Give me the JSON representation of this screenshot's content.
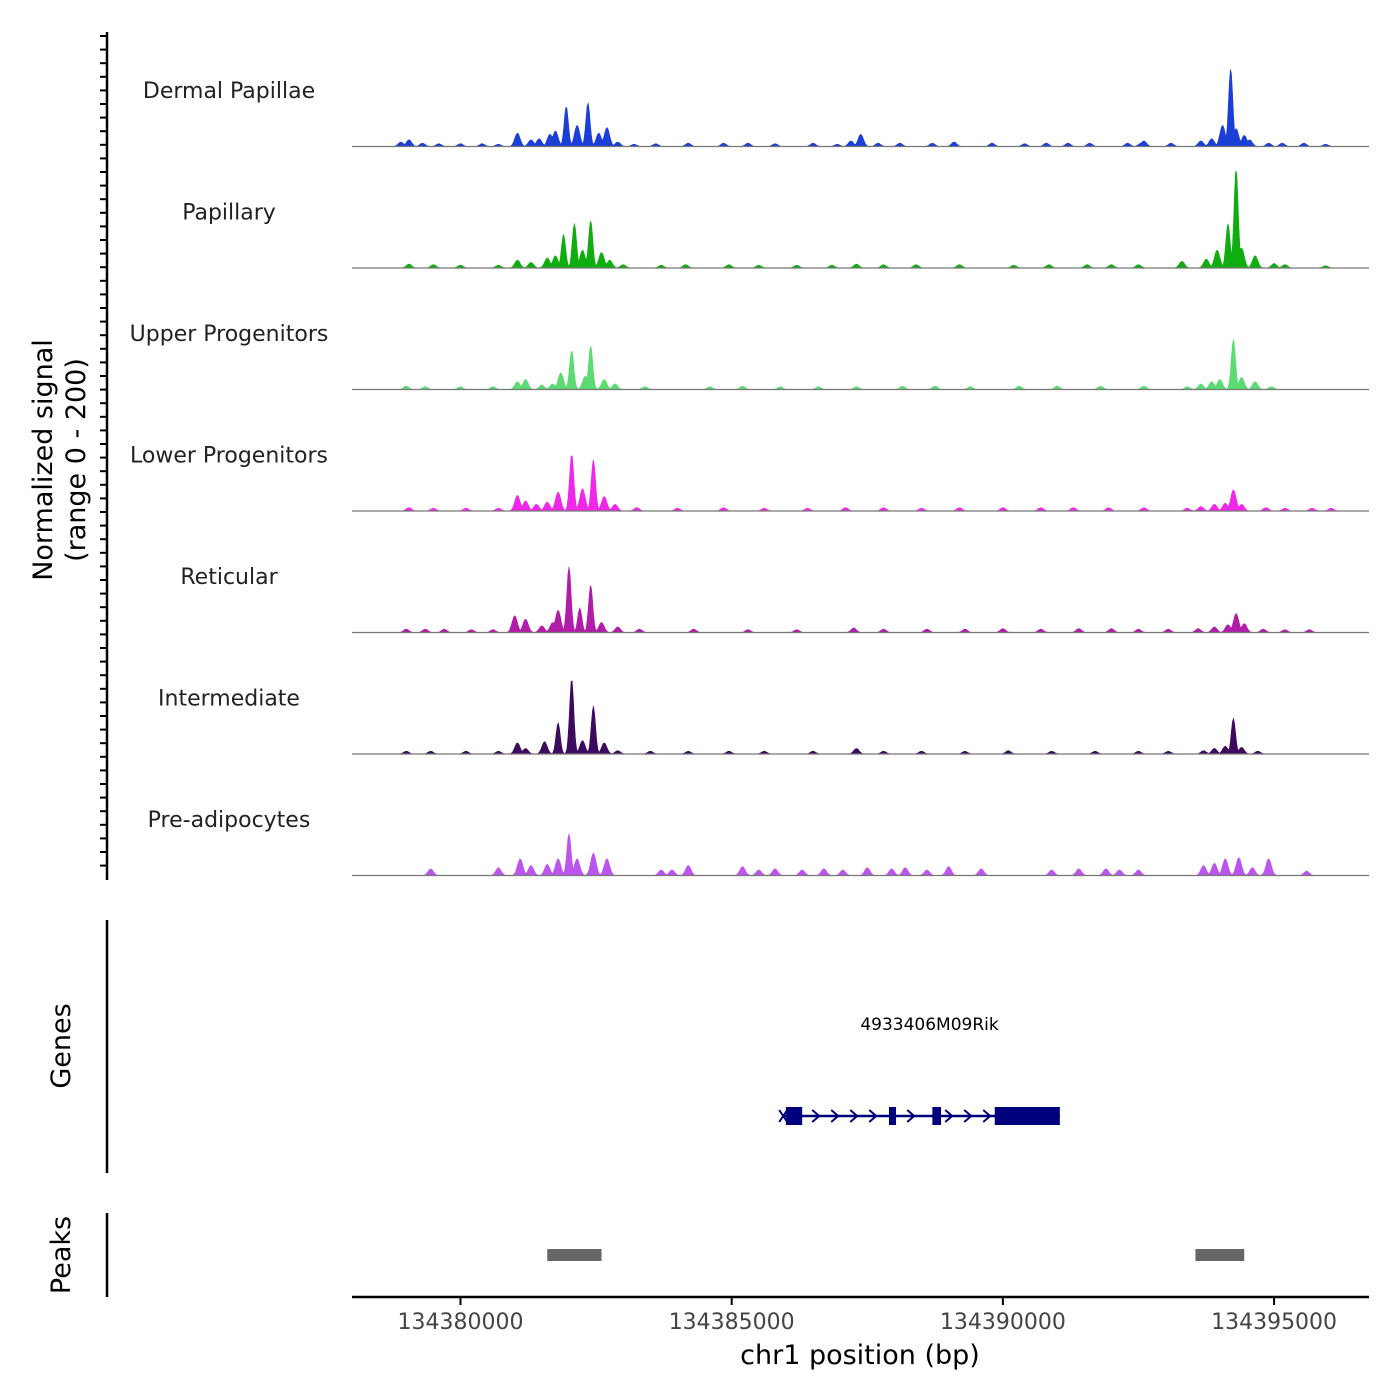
{
  "chart_data": {
    "type": "area",
    "title": "",
    "ylabel": "Normalized signal",
    "ylabel_range": "(range 0 - 200)",
    "ylim": [
      0,
      200
    ],
    "xlabel": "chr1 position (bp)",
    "xlim": [
      134378000,
      134396750
    ],
    "xticks": [
      134380000,
      134385000,
      134390000,
      134395000
    ],
    "xtick_labels": [
      "134380000",
      "134385000",
      "134390000",
      "134395000"
    ],
    "grid": false,
    "tracks": [
      {
        "name": "Dermal Papillae",
        "color": "#1a3fd6",
        "peaks": [
          [
            134378900,
            8
          ],
          [
            134379050,
            12
          ],
          [
            134379300,
            6
          ],
          [
            134379600,
            5
          ],
          [
            134380000,
            5
          ],
          [
            134380400,
            5
          ],
          [
            134380700,
            4
          ],
          [
            134381050,
            24
          ],
          [
            134381300,
            12
          ],
          [
            134381450,
            14
          ],
          [
            134381650,
            22
          ],
          [
            134381750,
            28
          ],
          [
            134381950,
            72
          ],
          [
            134382150,
            38
          ],
          [
            134382350,
            78
          ],
          [
            134382550,
            24
          ],
          [
            134382700,
            34
          ],
          [
            134382900,
            8
          ],
          [
            134383200,
            4
          ],
          [
            134383600,
            5
          ],
          [
            134384200,
            6
          ],
          [
            134384850,
            6
          ],
          [
            134385300,
            6
          ],
          [
            134385800,
            5
          ],
          [
            134386500,
            6
          ],
          [
            134386950,
            4
          ],
          [
            134387200,
            10
          ],
          [
            134387380,
            22
          ],
          [
            134387700,
            6
          ],
          [
            134388100,
            6
          ],
          [
            134388700,
            6
          ],
          [
            134389100,
            8
          ],
          [
            134389800,
            6
          ],
          [
            134390400,
            5
          ],
          [
            134390800,
            6
          ],
          [
            134391200,
            6
          ],
          [
            134391600,
            6
          ],
          [
            134392300,
            6
          ],
          [
            134392550,
            6
          ],
          [
            134392600,
            10
          ],
          [
            134393100,
            6
          ],
          [
            134393650,
            10
          ],
          [
            134393850,
            14
          ],
          [
            134394050,
            38
          ],
          [
            134394200,
            140
          ],
          [
            134394300,
            32
          ],
          [
            134394450,
            20
          ],
          [
            134394550,
            12
          ],
          [
            134394900,
            6
          ],
          [
            134395150,
            6
          ],
          [
            134395550,
            6
          ],
          [
            134395950,
            4
          ]
        ]
      },
      {
        "name": "Papillary",
        "color": "#10ad10",
        "peaks": [
          [
            134379050,
            7
          ],
          [
            134379500,
            6
          ],
          [
            134380000,
            5
          ],
          [
            134380700,
            5
          ],
          [
            134381050,
            14
          ],
          [
            134381300,
            10
          ],
          [
            134381600,
            18
          ],
          [
            134381750,
            22
          ],
          [
            134381900,
            60
          ],
          [
            134382100,
            80
          ],
          [
            134382250,
            32
          ],
          [
            134382400,
            85
          ],
          [
            134382600,
            28
          ],
          [
            134382750,
            14
          ],
          [
            134383000,
            6
          ],
          [
            134383700,
            5
          ],
          [
            134384150,
            6
          ],
          [
            134384950,
            6
          ],
          [
            134385500,
            5
          ],
          [
            134386200,
            5
          ],
          [
            134386850,
            5
          ],
          [
            134387300,
            7
          ],
          [
            134387800,
            6
          ],
          [
            134388400,
            6
          ],
          [
            134389200,
            6
          ],
          [
            134390200,
            5
          ],
          [
            134390850,
            6
          ],
          [
            134391550,
            6
          ],
          [
            134392000,
            6
          ],
          [
            134392500,
            6
          ],
          [
            134393300,
            12
          ],
          [
            134393750,
            16
          ],
          [
            134393950,
            32
          ],
          [
            134394150,
            80
          ],
          [
            134394300,
            178
          ],
          [
            134394400,
            36
          ],
          [
            134394650,
            22
          ],
          [
            134395000,
            8
          ],
          [
            134395200,
            6
          ],
          [
            134395950,
            4
          ]
        ]
      },
      {
        "name": "Upper Progenitors",
        "color": "#5bdb72",
        "peaks": [
          [
            134379000,
            6
          ],
          [
            134379350,
            5
          ],
          [
            134380000,
            5
          ],
          [
            134380600,
            5
          ],
          [
            134381050,
            14
          ],
          [
            134381200,
            18
          ],
          [
            134381500,
            8
          ],
          [
            134381700,
            10
          ],
          [
            134381850,
            30
          ],
          [
            134382050,
            70
          ],
          [
            134382300,
            24
          ],
          [
            134382400,
            78
          ],
          [
            134382650,
            18
          ],
          [
            134382850,
            10
          ],
          [
            134383400,
            5
          ],
          [
            134384600,
            5
          ],
          [
            134385200,
            6
          ],
          [
            134385900,
            5
          ],
          [
            134386600,
            5
          ],
          [
            134387300,
            5
          ],
          [
            134388150,
            6
          ],
          [
            134388750,
            6
          ],
          [
            134389400,
            5
          ],
          [
            134390300,
            6
          ],
          [
            134391000,
            6
          ],
          [
            134391800,
            6
          ],
          [
            134392600,
            6
          ],
          [
            134393400,
            5
          ],
          [
            134393650,
            10
          ],
          [
            134393850,
            14
          ],
          [
            134394000,
            18
          ],
          [
            134394250,
            90
          ],
          [
            134394400,
            22
          ],
          [
            134394650,
            14
          ],
          [
            134394950,
            5
          ]
        ]
      },
      {
        "name": "Lower Progenitors",
        "color": "#f026e8",
        "peaks": [
          [
            134379050,
            6
          ],
          [
            134379500,
            5
          ],
          [
            134380100,
            5
          ],
          [
            134380700,
            5
          ],
          [
            134381050,
            28
          ],
          [
            134381200,
            18
          ],
          [
            134381400,
            12
          ],
          [
            134381600,
            16
          ],
          [
            134381800,
            34
          ],
          [
            134382050,
            102
          ],
          [
            134382250,
            40
          ],
          [
            134382450,
            92
          ],
          [
            134382650,
            26
          ],
          [
            134382850,
            12
          ],
          [
            134383250,
            6
          ],
          [
            134384000,
            5
          ],
          [
            134384850,
            6
          ],
          [
            134385600,
            5
          ],
          [
            134386400,
            5
          ],
          [
            134387100,
            6
          ],
          [
            134387800,
            6
          ],
          [
            134388500,
            5
          ],
          [
            134389200,
            6
          ],
          [
            134390000,
            6
          ],
          [
            134390700,
            6
          ],
          [
            134391300,
            6
          ],
          [
            134391950,
            6
          ],
          [
            134392600,
            6
          ],
          [
            134393400,
            5
          ],
          [
            134393650,
            8
          ],
          [
            134393900,
            12
          ],
          [
            134394100,
            14
          ],
          [
            134394250,
            38
          ],
          [
            134394400,
            12
          ],
          [
            134394850,
            6
          ],
          [
            134395200,
            5
          ],
          [
            134395700,
            5
          ],
          [
            134396050,
            5
          ]
        ]
      },
      {
        "name": "Reticular",
        "color": "#b11ca8",
        "peaks": [
          [
            134379000,
            6
          ],
          [
            134379350,
            6
          ],
          [
            134379700,
            6
          ],
          [
            134380200,
            5
          ],
          [
            134380600,
            5
          ],
          [
            134381000,
            30
          ],
          [
            134381200,
            24
          ],
          [
            134381500,
            12
          ],
          [
            134381700,
            18
          ],
          [
            134381800,
            40
          ],
          [
            134382000,
            118
          ],
          [
            134382200,
            44
          ],
          [
            134382400,
            85
          ],
          [
            134382600,
            18
          ],
          [
            134382900,
            10
          ],
          [
            134383300,
            6
          ],
          [
            134384300,
            6
          ],
          [
            134385300,
            5
          ],
          [
            134386200,
            5
          ],
          [
            134387250,
            8
          ],
          [
            134387800,
            6
          ],
          [
            134388600,
            6
          ],
          [
            134389300,
            6
          ],
          [
            134390000,
            7
          ],
          [
            134390700,
            6
          ],
          [
            134391400,
            7
          ],
          [
            134392000,
            7
          ],
          [
            134392500,
            6
          ],
          [
            134393050,
            6
          ],
          [
            134393600,
            7
          ],
          [
            134393900,
            10
          ],
          [
            134394150,
            14
          ],
          [
            134394300,
            34
          ],
          [
            134394450,
            16
          ],
          [
            134394800,
            6
          ],
          [
            134395200,
            5
          ],
          [
            134395650,
            5
          ]
        ]
      },
      {
        "name": "Intermediate",
        "color": "#3c0a5e",
        "peaks": [
          [
            134379000,
            5
          ],
          [
            134379450,
            5
          ],
          [
            134380100,
            5
          ],
          [
            134380700,
            5
          ],
          [
            134381050,
            20
          ],
          [
            134381200,
            10
          ],
          [
            134381550,
            22
          ],
          [
            134381800,
            56
          ],
          [
            134382050,
            135
          ],
          [
            134382250,
            24
          ],
          [
            134382450,
            86
          ],
          [
            134382650,
            20
          ],
          [
            134382900,
            6
          ],
          [
            134383500,
            5
          ],
          [
            134384200,
            5
          ],
          [
            134384950,
            5
          ],
          [
            134385600,
            5
          ],
          [
            134386500,
            5
          ],
          [
            134387300,
            10
          ],
          [
            134387800,
            5
          ],
          [
            134388500,
            5
          ],
          [
            134389300,
            5
          ],
          [
            134390100,
            6
          ],
          [
            134390900,
            5
          ],
          [
            134391700,
            5
          ],
          [
            134392500,
            5
          ],
          [
            134393050,
            5
          ],
          [
            134393700,
            6
          ],
          [
            134393900,
            10
          ],
          [
            134394100,
            14
          ],
          [
            134394250,
            64
          ],
          [
            134394400,
            12
          ],
          [
            134394700,
            5
          ]
        ]
      },
      {
        "name": "Pre-adipocytes",
        "color": "#bb55ee",
        "peaks": [
          [
            134379450,
            12
          ],
          [
            134380700,
            14
          ],
          [
            134381100,
            30
          ],
          [
            134381300,
            18
          ],
          [
            134381600,
            20
          ],
          [
            134381800,
            30
          ],
          [
            134382000,
            75
          ],
          [
            134382150,
            30
          ],
          [
            134382450,
            40
          ],
          [
            134382700,
            30
          ],
          [
            134383700,
            10
          ],
          [
            134383900,
            10
          ],
          [
            134384200,
            18
          ],
          [
            134385200,
            16
          ],
          [
            134385500,
            10
          ],
          [
            134385800,
            12
          ],
          [
            134386300,
            10
          ],
          [
            134386700,
            12
          ],
          [
            134387050,
            10
          ],
          [
            134387500,
            14
          ],
          [
            134387950,
            12
          ],
          [
            134388200,
            14
          ],
          [
            134388600,
            10
          ],
          [
            134389000,
            16
          ],
          [
            134389600,
            12
          ],
          [
            134390900,
            10
          ],
          [
            134391400,
            12
          ],
          [
            134391900,
            12
          ],
          [
            134392150,
            10
          ],
          [
            134392500,
            10
          ],
          [
            134393700,
            18
          ],
          [
            134393900,
            22
          ],
          [
            134394100,
            30
          ],
          [
            134394350,
            32
          ],
          [
            134394600,
            14
          ],
          [
            134394900,
            30
          ],
          [
            134395600,
            8
          ]
        ]
      }
    ],
    "gene_panel_label": "Genes",
    "genes": [
      {
        "name": "4933406M09Rik",
        "strand": "+",
        "start": 134385950,
        "end": 134391050,
        "exons": [
          [
            134386000,
            134386300
          ],
          [
            134387900,
            134388030
          ],
          [
            134388700,
            134388860
          ],
          [
            134389850,
            134391050
          ]
        ],
        "color": "#00007d"
      }
    ],
    "peaks_panel_label": "Peaks",
    "peak_regions": [
      {
        "start": 134381600,
        "end": 134382600
      },
      {
        "start": 134393550,
        "end": 134394450
      }
    ],
    "peak_color": "#666666"
  }
}
